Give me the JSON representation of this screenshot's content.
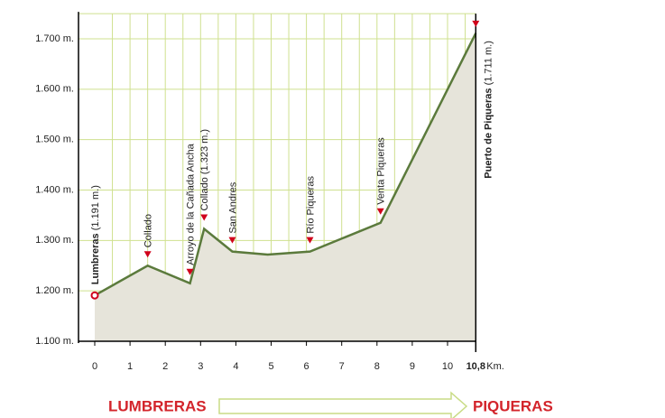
{
  "chart_data": {
    "type": "area",
    "x": [
      0,
      1.5,
      2.7,
      3.1,
      3.9,
      4.9,
      6.1,
      8.1,
      10.8
    ],
    "values": [
      1191,
      1250,
      1215,
      1323,
      1278,
      1272,
      1278,
      1335,
      1711
    ],
    "names": [
      "Lumbreras",
      "Collado",
      "Arroyo de la Cañada Ancha",
      "Collado",
      "San Andres",
      null,
      "Río Piqueras",
      "Venta Piqueras",
      "Puerto de Piqueras"
    ],
    "value_labels": [
      "(1.191 m.)",
      null,
      null,
      "(1.323 m.)",
      null,
      null,
      null,
      null,
      "(1.711 m.)"
    ],
    "bold_names": [
      true,
      false,
      false,
      false,
      false,
      false,
      false,
      false,
      true
    ],
    "xlim": [
      0,
      10.8
    ],
    "ylim": [
      1100,
      1750
    ],
    "xticks": [
      0,
      1,
      2,
      3,
      4,
      5,
      6,
      7,
      8,
      9,
      10,
      {
        "value": 10.8,
        "label": "10,8"
      }
    ],
    "x_unit": "Km.",
    "x_gridlines": [
      0.5,
      1,
      1.5,
      2,
      2.5,
      3,
      3.5,
      4,
      4.5,
      5,
      5.5,
      6,
      6.5,
      7,
      7.5,
      8,
      8.5,
      9,
      9.5,
      10,
      10.5
    ],
    "yticks": [
      {
        "value": 1100,
        "label": "1.100 m."
      },
      {
        "value": 1200,
        "label": "1.200 m."
      },
      {
        "value": 1300,
        "label": "1.300 m."
      },
      {
        "value": 1400,
        "label": "1.400 m."
      },
      {
        "value": 1500,
        "label": "1.500 m."
      },
      {
        "value": 1600,
        "label": "1.600 m."
      },
      {
        "value": 1700,
        "label": "1.700 m."
      },
      1750
    ],
    "line_color": "#5b7a3c",
    "fill_color": "#e6e4da",
    "marker_color": "#d0021b",
    "start_label": "LUMBRERAS",
    "end_label": "PIQUERAS"
  }
}
